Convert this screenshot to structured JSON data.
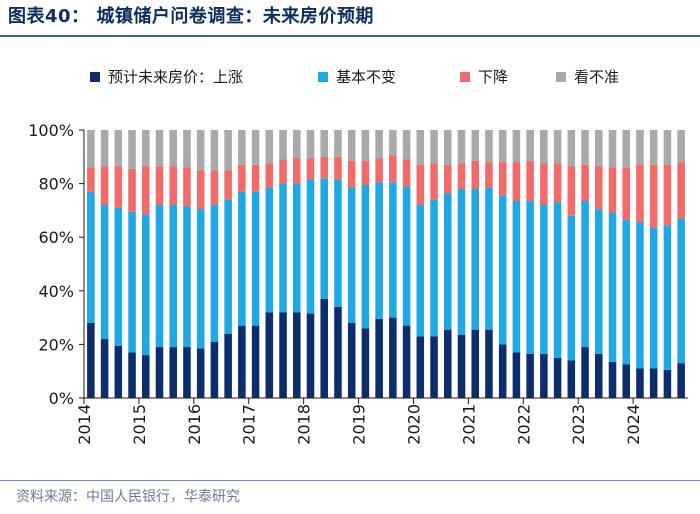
{
  "title": "图表40： 城镇储户问卷调查：未来房价预期",
  "source": "资料来源：中国人民银行，华泰研究",
  "colors": {
    "up": "#0d2d6b",
    "flat": "#1fa8e3",
    "down": "#f16b6b",
    "unsure": "#a9a9a9",
    "title": "#0d2d5e",
    "rule": "#3a5f9a"
  },
  "chart_data": {
    "type": "stacked_bar",
    "title": "城镇储户问卷调查：未来房价预期",
    "xlabel": "",
    "ylabel": "",
    "ylim": [
      0,
      100
    ],
    "y_ticks": [
      "0%",
      "20%",
      "40%",
      "60%",
      "80%",
      "100%"
    ],
    "year_labels": [
      "2014",
      "2015",
      "2016",
      "2017",
      "2018",
      "2019",
      "2020",
      "2021",
      "2022",
      "2023",
      "2024"
    ],
    "categories": [
      "2014Q1",
      "2014Q2",
      "2014Q3",
      "2014Q4",
      "2015Q1",
      "2015Q2",
      "2015Q3",
      "2015Q4",
      "2016Q1",
      "2016Q2",
      "2016Q3",
      "2016Q4",
      "2017Q1",
      "2017Q2",
      "2017Q3",
      "2017Q4",
      "2018Q1",
      "2018Q2",
      "2018Q3",
      "2018Q4",
      "2019Q1",
      "2019Q2",
      "2019Q3",
      "2019Q4",
      "2020Q1",
      "2020Q2",
      "2020Q3",
      "2020Q4",
      "2021Q1",
      "2021Q2",
      "2021Q3",
      "2021Q4",
      "2022Q1",
      "2022Q2",
      "2022Q3",
      "2022Q4",
      "2023Q1",
      "2023Q2",
      "2023Q3",
      "2023Q4",
      "2024Q1",
      "2024Q2",
      "2024Q3",
      "2024Q4"
    ],
    "series": [
      {
        "name": "预计未来房价：上涨",
        "color": "#0d2d6b",
        "values": [
          28,
          22,
          19.5,
          17,
          16,
          19,
          19,
          19,
          18.5,
          21,
          24,
          27,
          27,
          32,
          32,
          32,
          31.5,
          37,
          34,
          28,
          26,
          29.5,
          30,
          27,
          23,
          23,
          25.5,
          23.5,
          25.5,
          25.5,
          20,
          17,
          16.5,
          16.5,
          15,
          14,
          19,
          16.5,
          13.5,
          12.5,
          11,
          11,
          10.5,
          13
        ]
      },
      {
        "name": "基本不变",
        "color": "#1fa8e3",
        "values": [
          49,
          50,
          51.5,
          52.5,
          52.5,
          53,
          53,
          52.5,
          52,
          51,
          50,
          50,
          50,
          46.5,
          48,
          48,
          50,
          45,
          47.5,
          50.5,
          53.5,
          51,
          50.5,
          52,
          49,
          51,
          51,
          54.5,
          52.5,
          53,
          55.5,
          56.5,
          57,
          55.5,
          58,
          54,
          54.5,
          54,
          55.5,
          54,
          54.5,
          52.5,
          54,
          54
        ]
      },
      {
        "name": "下降",
        "color": "#f16b6b",
        "values": [
          9,
          14.5,
          15.5,
          16,
          18,
          14.5,
          14.5,
          14.5,
          14.5,
          13,
          11,
          10,
          10,
          9,
          9,
          9.5,
          8,
          8,
          8.5,
          10,
          9,
          9,
          10,
          10,
          15,
          13.5,
          10.5,
          9.5,
          10.5,
          9.5,
          12.5,
          14.5,
          15,
          15.5,
          14.5,
          18.5,
          13.5,
          16,
          17,
          19.5,
          21.5,
          23.5,
          22.5,
          21
        ]
      },
      {
        "name": "看不准",
        "color": "#a9a9a9",
        "values": [
          14,
          13.5,
          13.5,
          14.5,
          13.5,
          13.5,
          13.5,
          14,
          15,
          15,
          15,
          13,
          13,
          12.5,
          11,
          10.5,
          10.5,
          10,
          10,
          11.5,
          11.5,
          10.5,
          9.5,
          11,
          13,
          12.5,
          13,
          12.5,
          11.5,
          12,
          12,
          12,
          11.5,
          12.5,
          12.5,
          13.5,
          13,
          13.5,
          14,
          14,
          13,
          13,
          13,
          12
        ]
      }
    ]
  }
}
